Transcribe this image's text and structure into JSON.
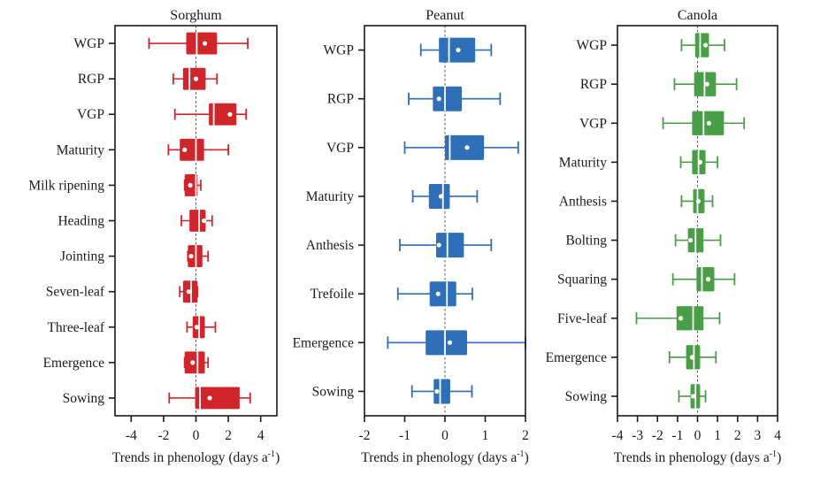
{
  "figure": {
    "xlabel": "Trends in phenology (days a",
    "xlabel_sup": "-1",
    "xlabel_close": ")"
  },
  "chart_data": [
    {
      "type": "box",
      "title": "Sorghum",
      "color": "#d0262b",
      "xlabel": "Trends in phenology (days a-1)",
      "xlim": [
        -5,
        5
      ],
      "xticks": [
        -4,
        -2,
        0,
        2,
        4
      ],
      "xtick_labels": [
        "-4",
        "-2",
        "0",
        "2",
        "4"
      ],
      "reference_line": 0,
      "categories": [
        "WGP",
        "RGP",
        "VGP",
        "Maturity",
        "Milk ripening",
        "Heading",
        "Jointing",
        "Seven-leaf",
        "Three-leaf",
        "Emergence",
        "Sowing"
      ],
      "boxes": [
        {
          "whisker_low": -2.9,
          "q1": -0.6,
          "median": 0.05,
          "q3": 1.3,
          "whisker_high": 3.2,
          "mean": 0.55
        },
        {
          "whisker_low": -1.4,
          "q1": -0.8,
          "median": -0.4,
          "q3": 0.6,
          "whisker_high": 1.3,
          "mean": 0.0
        },
        {
          "whisker_low": -1.3,
          "q1": 0.8,
          "median": 1.1,
          "q3": 2.5,
          "whisker_high": 3.1,
          "mean": 2.1
        },
        {
          "whisker_low": -1.7,
          "q1": -1.0,
          "median": 0.0,
          "q3": 0.5,
          "whisker_high": 2.0,
          "mean": -0.7
        },
        {
          "whisker_low": -0.7,
          "q1": -0.7,
          "median": 0.0,
          "q3": 0.1,
          "whisker_high": 0.3,
          "mean": -0.35
        },
        {
          "whisker_low": -0.9,
          "q1": -0.4,
          "median": 0.2,
          "q3": 0.6,
          "whisker_high": 1.0,
          "mean": 0.5
        },
        {
          "whisker_low": -0.5,
          "q1": -0.5,
          "median": 0.0,
          "q3": 0.4,
          "whisker_high": 0.75,
          "mean": -0.3
        },
        {
          "whisker_low": -1.0,
          "q1": -0.8,
          "median": -0.3,
          "q3": 0.1,
          "whisker_high": 0.1,
          "mean": -0.45
        },
        {
          "whisker_low": -0.55,
          "q1": -0.2,
          "median": 0.2,
          "q3": 0.55,
          "whisker_high": 1.2,
          "mean": 0.05
        },
        {
          "whisker_low": -0.7,
          "q1": -0.7,
          "median": 0.1,
          "q3": 0.55,
          "whisker_high": 0.75,
          "mean": -0.2
        },
        {
          "whisker_low": -1.65,
          "q1": -0.05,
          "median": 0.25,
          "q3": 2.7,
          "whisker_high": 3.35,
          "mean": 0.85
        }
      ]
    },
    {
      "type": "box",
      "title": "Peanut",
      "color": "#2e6fb7",
      "xlabel": "Trends in phenology (days a-1)",
      "xlim": [
        -2,
        2
      ],
      "xticks": [
        -2,
        -1,
        0,
        1,
        2
      ],
      "xtick_labels": [
        "-2",
        "-1",
        "0",
        "1",
        "2"
      ],
      "reference_line": 0,
      "categories": [
        "WGP",
        "RGP",
        "VGP",
        "Maturity",
        "Anthesis",
        "Trefoile",
        "Emergence",
        "Sowing"
      ],
      "boxes": [
        {
          "whisker_low": -0.6,
          "q1": -0.15,
          "median": 0.1,
          "q3": 0.75,
          "whisker_high": 1.15,
          "mean": 0.33
        },
        {
          "whisker_low": -0.9,
          "q1": -0.3,
          "median": 0.0,
          "q3": 0.42,
          "whisker_high": 1.37,
          "mean": -0.15
        },
        {
          "whisker_low": -1.0,
          "q1": 0.0,
          "median": 0.12,
          "q3": 0.97,
          "whisker_high": 1.82,
          "mean": 0.55
        },
        {
          "whisker_low": -0.8,
          "q1": -0.4,
          "median": -0.05,
          "q3": 0.12,
          "whisker_high": 0.8,
          "mean": -0.1
        },
        {
          "whisker_low": -1.12,
          "q1": -0.22,
          "median": 0.06,
          "q3": 0.47,
          "whisker_high": 1.15,
          "mean": -0.15
        },
        {
          "whisker_low": -1.17,
          "q1": -0.38,
          "median": 0.05,
          "q3": 0.28,
          "whisker_high": 0.68,
          "mean": -0.17
        },
        {
          "whisker_low": -1.42,
          "q1": -0.48,
          "median": 0.0,
          "q3": 0.55,
          "whisker_high": 2.0,
          "mean": 0.12
        },
        {
          "whisker_low": -0.82,
          "q1": -0.28,
          "median": -0.12,
          "q3": 0.13,
          "whisker_high": 0.67,
          "mean": -0.2
        }
      ]
    },
    {
      "type": "box",
      "title": "Canola",
      "color": "#4a9e47",
      "xlabel": "Trends in phenology (days a-1)",
      "xlim": [
        -4,
        4
      ],
      "xticks": [
        -4,
        -3,
        -2,
        -1,
        0,
        1,
        2,
        3,
        4
      ],
      "xtick_labels": [
        "-4",
        "-3",
        "-2",
        "-1",
        "0",
        "1",
        "2",
        "3",
        "4"
      ],
      "reference_line": 0,
      "categories": [
        "WGP",
        "RGP",
        "VGP",
        "Maturity",
        "Anthesis",
        "Bolting",
        "Squaring",
        "Five-leaf",
        "Emergence",
        "Sowing"
      ],
      "boxes": [
        {
          "whisker_low": -0.8,
          "q1": -0.12,
          "median": 0.13,
          "q3": 0.57,
          "whisker_high": 1.35,
          "mean": 0.4
        },
        {
          "whisker_low": -1.15,
          "q1": -0.17,
          "median": 0.35,
          "q3": 0.92,
          "whisker_high": 1.95,
          "mean": 0.48
        },
        {
          "whisker_low": -1.72,
          "q1": -0.27,
          "median": 0.3,
          "q3": 1.32,
          "whisker_high": 2.33,
          "mean": 0.57
        },
        {
          "whisker_low": -0.84,
          "q1": -0.27,
          "median": 0.05,
          "q3": 0.4,
          "whisker_high": 1.0,
          "mean": 0.13
        },
        {
          "whisker_low": -0.8,
          "q1": -0.22,
          "median": 0.0,
          "q3": 0.35,
          "whisker_high": 0.75,
          "mean": 0.04
        },
        {
          "whisker_low": -1.1,
          "q1": -0.48,
          "median": -0.1,
          "q3": 0.3,
          "whisker_high": 1.15,
          "mean": -0.35
        },
        {
          "whisker_low": -1.23,
          "q1": -0.05,
          "median": 0.22,
          "q3": 0.84,
          "whisker_high": 1.85,
          "mean": 0.53
        },
        {
          "whisker_low": -3.05,
          "q1": -1.05,
          "median": -0.22,
          "q3": 0.3,
          "whisker_high": 1.1,
          "mean": -0.84
        },
        {
          "whisker_low": -1.4,
          "q1": -0.57,
          "median": -0.18,
          "q3": 0.13,
          "whisker_high": 0.92,
          "mean": -0.27
        },
        {
          "whisker_low": -0.93,
          "q1": -0.35,
          "median": -0.1,
          "q3": 0.13,
          "whisker_high": 0.4,
          "mean": -0.22
        }
      ]
    }
  ]
}
